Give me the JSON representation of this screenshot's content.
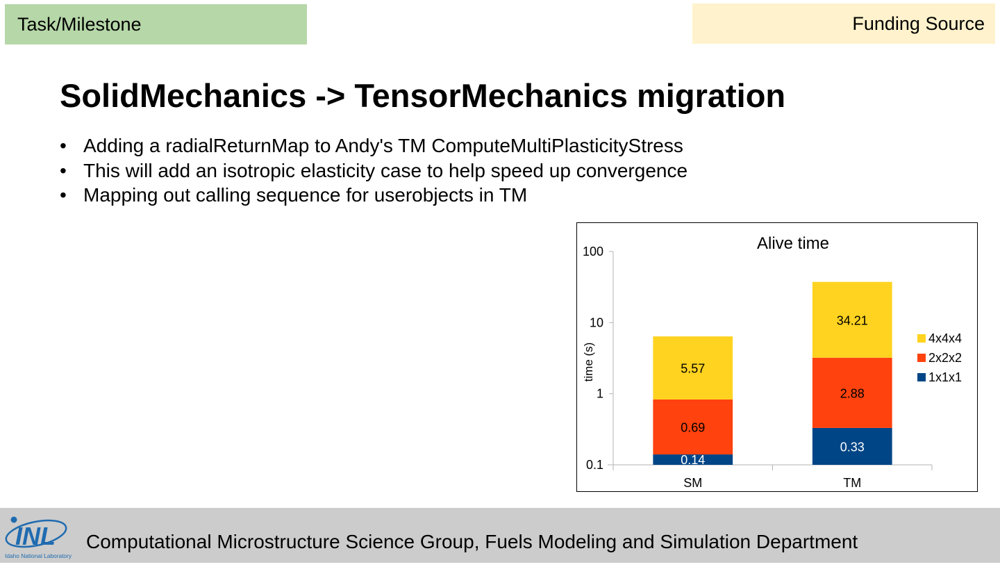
{
  "header": {
    "task_label": "Task/Milestone",
    "funding_label": "Funding Source"
  },
  "slide": {
    "title": "SolidMechanics -> TensorMechanics migration",
    "bullet_glyph": "•",
    "bullets": [
      "Adding a radialReturnMap to Andy's TM ComputeMultiPlasticityStress",
      "This will add an isotropic elasticity case to help speed up convergence",
      "Mapping out calling sequence for userobjects in TM"
    ]
  },
  "chart_data": {
    "type": "bar",
    "stacked": true,
    "title": "Alive time",
    "xlabel": "",
    "ylabel": "time (s)",
    "yscale": "log",
    "ylim": [
      0.1,
      100
    ],
    "yticks": [
      "0.1",
      "1",
      "10",
      "100"
    ],
    "categories": [
      "SM",
      "TM"
    ],
    "series": [
      {
        "name": "1x1x1",
        "values": [
          0.14,
          0.33
        ],
        "color": "#004586"
      },
      {
        "name": "2x2x2",
        "values": [
          0.69,
          2.88
        ],
        "color": "#ff420e"
      },
      {
        "name": "4x4x4",
        "values": [
          5.57,
          34.21
        ],
        "color": "#ffd320"
      }
    ],
    "data_labels": [
      [
        "0.14",
        "0.33"
      ],
      [
        "0.69",
        "2.88"
      ],
      [
        "5.57",
        "34.21"
      ]
    ],
    "legend_order": [
      "4x4x4",
      "2x2x2",
      "1x1x1"
    ],
    "legend_position": "right",
    "grid": false
  },
  "footer": {
    "text": "Computational Microstructure Science Group, Fuels Modeling and Simulation Department",
    "logo_text": "INL",
    "logo_subtext": "Idaho National Laboratory",
    "logo_color": "#1f6bb0"
  }
}
